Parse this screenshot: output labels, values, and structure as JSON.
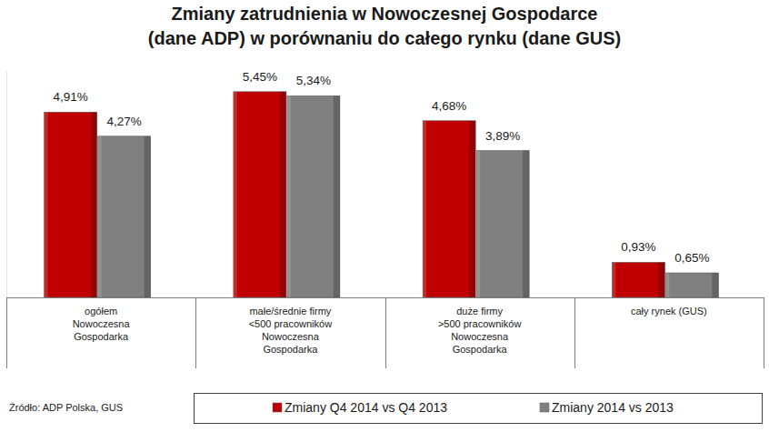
{
  "chart_data": {
    "type": "bar",
    "title": "Zmiany zatrudnienia w Nowoczesnej Gospodarce\n(dane ADP) w porównaniu do całego rynku (dane GUS)",
    "categories": [
      "ogółem\nNowoczesna\nGospodarka",
      "małe/średnie firmy\n<500 pracowników\nNowoczesna\nGospodarka",
      "duże firmy\n>500 pracowników\nNowoczesna\nGospodarka",
      "cały rynek (GUS)"
    ],
    "series": [
      {
        "name": "Zmiany Q4 2014 vs Q4 2013",
        "color": "#c00000",
        "values": [
          4.91,
          5.45,
          4.68,
          0.93
        ],
        "value_labels": [
          "4,91%",
          "5,45%",
          "4,68%",
          "0,93%"
        ]
      },
      {
        "name": "Zmiany 2014 vs 2013",
        "color": "#808080",
        "values": [
          4.27,
          5.34,
          3.89,
          0.65
        ],
        "value_labels": [
          "4,27%",
          "5,34%",
          "3,89%",
          "0,65%"
        ]
      }
    ],
    "ylim": [
      0,
      6
    ],
    "grid": false,
    "legend": "bottom",
    "data_labels": true,
    "tick_labels": "x",
    "source": "Źródło: ADP Polska, GUS"
  }
}
